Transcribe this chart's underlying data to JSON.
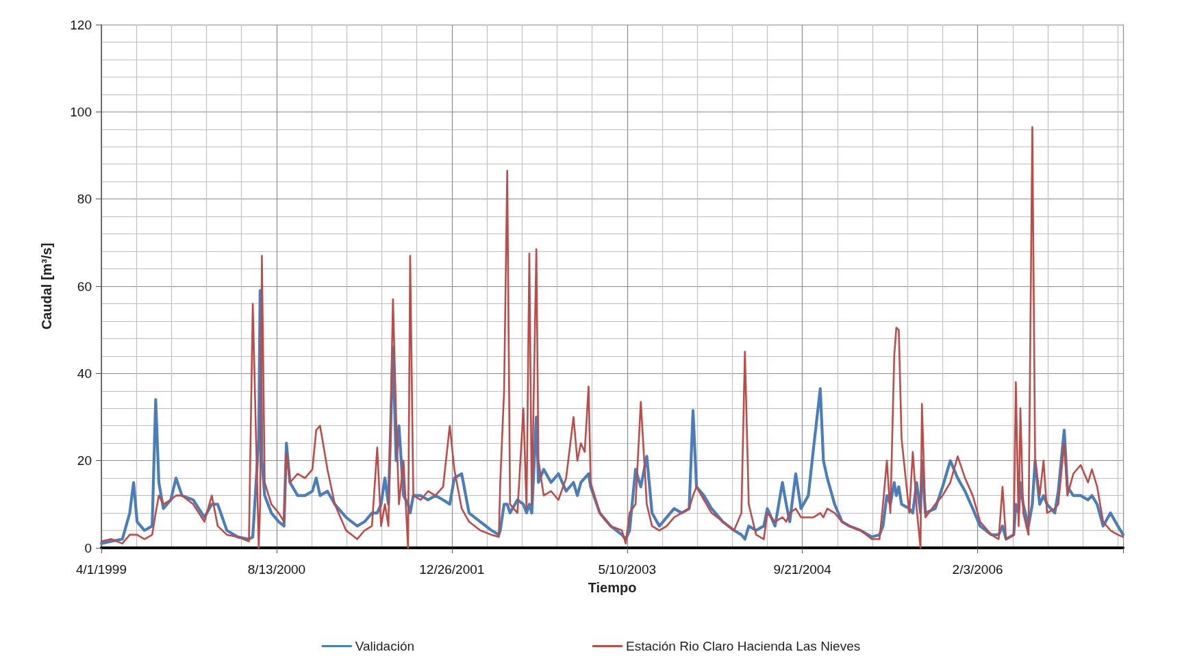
{
  "chart_data": {
    "type": "line",
    "xlabel": "Tiempo",
    "ylabel": "Caudal [m³/s]",
    "grid": true,
    "legend": "bottom",
    "marker": "none",
    "line_style": "solid",
    "xlim": [
      "1999-04-01",
      "2007-03-25"
    ],
    "xticks": [
      {
        "value": "1999-04-01",
        "label": "4/1/1999"
      },
      {
        "value": "2000-08-13",
        "label": "8/13/2000"
      },
      {
        "value": "2001-12-26",
        "label": "12/26/2001"
      },
      {
        "value": "2003-05-10",
        "label": "5/10/2003"
      },
      {
        "value": "2004-09-21",
        "label": "9/21/2004"
      },
      {
        "value": "2006-02-03",
        "label": "2/3/2006"
      }
    ],
    "ylim": [
      0,
      120
    ],
    "yticks": [
      0,
      20,
      40,
      60,
      80,
      100,
      120
    ],
    "x": [
      "1999-04-01",
      "1999-04-29",
      "1999-05-31",
      "1999-06-21",
      "1999-07-02",
      "1999-07-12",
      "1999-08-02",
      "1999-08-24",
      "1999-09-03",
      "1999-09-12",
      "1999-09-25",
      "1999-10-16",
      "1999-10-31",
      "1999-11-17",
      "1999-12-19",
      "2000-01-20",
      "2000-02-10",
      "2000-02-27",
      "2000-03-24",
      "2000-04-24",
      "2000-05-26",
      "2000-06-06",
      "2000-06-23",
      "2000-06-27",
      "2000-07-02",
      "2000-07-10",
      "2000-07-29",
      "2000-08-19",
      "2000-09-03",
      "2000-09-10",
      "2000-09-20",
      "2000-10-12",
      "2000-11-02",
      "2000-11-23",
      "2000-12-04",
      "2000-12-15",
      "2001-01-05",
      "2001-01-26",
      "2001-02-27",
      "2001-03-31",
      "2001-04-21",
      "2001-05-12",
      "2001-05-27",
      "2001-06-07",
      "2001-06-18",
      "2001-06-28",
      "2001-07-11",
      "2001-07-20",
      "2001-07-28",
      "2001-08-10",
      "2001-08-23",
      "2001-08-29",
      "2001-09-07",
      "2001-09-28",
      "2001-10-19",
      "2001-11-09",
      "2001-12-01",
      "2001-12-20",
      "2002-01-02",
      "2002-01-23",
      "2002-02-13",
      "2002-03-17",
      "2002-04-18",
      "2002-05-09",
      "2002-05-13",
      "2002-05-24",
      "2002-06-02",
      "2002-06-10",
      "2002-07-01",
      "2002-07-18",
      "2002-07-27",
      "2002-08-04",
      "2002-08-11",
      "2002-08-24",
      "2002-08-30",
      "2002-09-14",
      "2002-10-05",
      "2002-10-26",
      "2002-11-17",
      "2002-12-08",
      "2002-12-19",
      "2002-12-29",
      "2003-01-09",
      "2003-01-20",
      "2003-01-26",
      "2003-02-21",
      "2003-03-24",
      "2003-04-25",
      "2003-05-06",
      "2003-05-17",
      "2003-06-03",
      "2003-06-18",
      "2003-07-05",
      "2003-07-20",
      "2003-08-10",
      "2003-08-31",
      "2003-09-21",
      "2003-10-13",
      "2003-11-03",
      "2003-11-14",
      "2003-11-24",
      "2003-12-15",
      "2004-01-06",
      "2004-02-07",
      "2004-03-10",
      "2004-03-31",
      "2004-04-10",
      "2004-04-21",
      "2004-05-12",
      "2004-06-03",
      "2004-06-13",
      "2004-07-05",
      "2004-07-26",
      "2004-08-06",
      "2004-08-16",
      "2004-09-02",
      "2004-09-17",
      "2004-10-08",
      "2004-10-23",
      "2004-11-11",
      "2004-11-20",
      "2004-12-01",
      "2004-12-22",
      "2005-01-12",
      "2005-02-02",
      "2005-03-06",
      "2005-04-07",
      "2005-04-29",
      "2005-05-09",
      "2005-05-20",
      "2005-05-30",
      "2005-06-10",
      "2005-06-16",
      "2005-06-23",
      "2005-07-01",
      "2005-07-23",
      "2005-08-02",
      "2005-08-13",
      "2005-08-24",
      "2005-08-28",
      "2005-09-07",
      "2005-10-05",
      "2005-10-26",
      "2005-11-17",
      "2005-12-08",
      "2005-12-29",
      "2006-01-20",
      "2006-02-10",
      "2006-03-14",
      "2006-04-04",
      "2006-04-15",
      "2006-04-25",
      "2006-05-17",
      "2006-05-23",
      "2006-05-31",
      "2006-06-05",
      "2006-06-13",
      "2006-06-28",
      "2006-07-09",
      "2006-07-17",
      "2006-07-30",
      "2006-08-10",
      "2006-08-20",
      "2006-09-11",
      "2006-09-21",
      "2006-10-08",
      "2006-10-17",
      "2006-11-03",
      "2006-11-24",
      "2006-12-15",
      "2006-12-26",
      "2007-01-10",
      "2007-01-27",
      "2007-02-17",
      "2007-03-10",
      "2007-03-25"
    ],
    "series": [
      {
        "name": "Validación",
        "color": "#4a7ebb",
        "values": [
          1,
          1.5,
          2,
          8,
          15,
          6,
          4,
          5,
          34,
          15,
          9,
          11,
          16,
          12,
          11,
          7,
          10,
          10,
          4,
          2.5,
          2,
          2.5,
          25,
          59,
          20,
          12,
          8,
          6,
          5,
          24,
          15,
          12,
          12,
          13,
          16,
          12,
          13,
          10,
          7,
          5,
          6,
          8,
          8,
          10,
          16,
          10,
          46,
          20,
          28,
          12,
          10,
          8,
          12,
          12,
          11,
          12,
          11,
          10,
          16,
          17,
          8,
          6,
          4,
          3,
          4,
          10,
          10,
          8,
          11,
          10,
          8,
          10,
          8,
          30,
          15,
          18,
          15,
          17,
          13,
          15,
          12,
          15,
          16,
          17,
          14,
          8,
          5,
          3,
          2,
          4,
          18,
          14,
          21,
          8,
          5,
          7,
          9,
          8,
          9,
          31.5,
          14,
          12,
          9,
          6,
          4,
          3,
          2,
          5,
          4,
          5,
          9,
          5,
          15,
          10,
          6,
          17,
          9,
          12,
          23,
          36.5,
          20,
          16,
          10,
          6,
          5,
          4,
          2.5,
          3,
          5,
          12,
          10,
          15,
          12,
          14,
          10,
          9,
          8,
          15,
          8,
          20,
          8,
          9,
          14,
          20,
          16,
          13,
          9,
          5,
          3,
          3,
          5,
          2,
          3,
          10,
          8,
          15,
          10,
          5,
          10,
          20,
          10,
          12,
          10,
          8,
          13,
          27,
          14,
          12,
          12,
          11,
          12,
          10,
          5,
          8,
          5,
          3
        ]
      },
      {
        "name": "Estación Rio Claro Hacienda Las Nieves",
        "color": "#be4b48",
        "values": [
          1.5,
          2,
          1,
          3,
          3,
          3,
          2,
          3,
          8,
          12,
          10,
          11,
          12,
          12,
          10,
          6,
          12,
          5,
          3,
          2.5,
          1.5,
          56,
          0,
          10,
          67,
          15,
          10,
          8,
          6,
          22,
          15,
          17,
          16,
          18,
          27,
          28,
          18,
          10,
          4,
          2,
          4,
          5,
          23,
          5,
          10,
          5,
          57,
          30,
          10,
          20,
          0,
          67,
          12,
          11,
          13,
          12,
          14,
          28,
          18,
          9,
          6,
          4,
          3,
          2.5,
          15,
          36,
          86.5,
          10,
          8,
          32,
          9,
          67.5,
          10,
          68.5,
          20,
          12,
          13,
          11,
          16,
          30,
          20,
          24,
          22,
          37,
          15,
          8,
          5,
          4,
          1,
          8,
          10,
          33.5,
          10,
          5,
          4,
          5,
          7,
          8,
          9,
          12,
          14,
          11,
          8,
          6,
          4,
          8,
          45,
          10,
          3,
          2,
          8,
          6,
          7,
          6,
          8,
          9,
          7,
          7,
          7,
          8,
          7,
          9,
          8,
          6,
          5,
          4,
          2,
          2,
          10,
          20,
          8,
          44,
          50.5,
          50,
          25,
          8,
          22,
          9,
          0,
          33,
          7,
          10,
          12,
          15,
          21,
          16,
          12,
          6,
          3,
          2,
          14,
          2,
          3,
          38,
          5,
          32,
          8,
          3,
          96.5,
          20,
          12,
          20,
          8,
          9,
          10,
          24,
          12,
          17,
          19,
          15,
          18,
          14,
          6,
          4,
          3,
          2.5
        ]
      }
    ]
  }
}
